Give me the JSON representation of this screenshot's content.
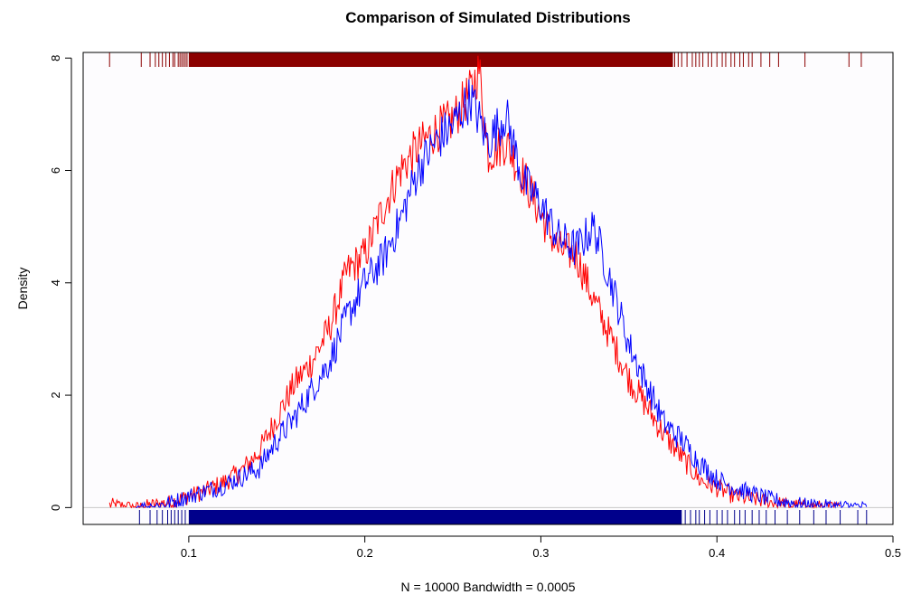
{
  "chart_data": {
    "type": "line",
    "title": "Comparison of Simulated Distributions",
    "xlabel": "N = 10000   Bandwidth = 0.0005",
    "ylabel": "Density",
    "xlim": [
      0.04,
      0.5
    ],
    "ylim": [
      -0.3,
      8.1
    ],
    "x_ticks": [
      0.1,
      0.2,
      0.3,
      0.4,
      0.5
    ],
    "x_tick_labels": [
      "0.1",
      "0.2",
      "0.3",
      "0.4",
      "0.5"
    ],
    "y_ticks": [
      0,
      2,
      4,
      6,
      8
    ],
    "y_tick_labels": [
      "0",
      "2",
      "4",
      "6",
      "8"
    ],
    "baseline": 0,
    "grid": false,
    "series": [
      {
        "name": "red",
        "color": "#ff0000",
        "x": [
          0.055,
          0.07,
          0.08,
          0.09,
          0.1,
          0.11,
          0.12,
          0.13,
          0.14,
          0.15,
          0.16,
          0.17,
          0.18,
          0.19,
          0.2,
          0.21,
          0.22,
          0.23,
          0.24,
          0.25,
          0.26,
          0.265,
          0.27,
          0.28,
          0.29,
          0.3,
          0.31,
          0.32,
          0.33,
          0.34,
          0.35,
          0.36,
          0.37,
          0.38,
          0.39,
          0.4,
          0.41,
          0.42,
          0.43,
          0.44,
          0.45,
          0.46,
          0.47
        ],
        "y": [
          0.05,
          0.0,
          0.05,
          0.1,
          0.2,
          0.3,
          0.45,
          0.65,
          1.0,
          1.6,
          2.2,
          2.6,
          3.2,
          4.2,
          4.5,
          5.3,
          6.0,
          6.4,
          6.7,
          6.9,
          7.4,
          7.8,
          6.3,
          6.5,
          5.9,
          5.2,
          4.6,
          4.5,
          3.7,
          3.0,
          2.3,
          1.8,
          1.3,
          0.9,
          0.5,
          0.35,
          0.2,
          0.15,
          0.1,
          0.05,
          0.02,
          0.02,
          0.0
        ]
      },
      {
        "name": "blue",
        "color": "#0000ff",
        "x": [
          0.07,
          0.08,
          0.09,
          0.1,
          0.11,
          0.12,
          0.13,
          0.14,
          0.15,
          0.16,
          0.17,
          0.18,
          0.19,
          0.2,
          0.21,
          0.22,
          0.23,
          0.24,
          0.25,
          0.26,
          0.27,
          0.28,
          0.29,
          0.3,
          0.31,
          0.32,
          0.33,
          0.34,
          0.35,
          0.36,
          0.37,
          0.38,
          0.39,
          0.4,
          0.41,
          0.42,
          0.43,
          0.44,
          0.45,
          0.46,
          0.47,
          0.48,
          0.485
        ],
        "y": [
          0.0,
          0.02,
          0.1,
          0.2,
          0.3,
          0.4,
          0.55,
          0.7,
          1.2,
          1.6,
          2.1,
          2.6,
          3.4,
          4.0,
          4.4,
          5.1,
          6.0,
          6.5,
          6.8,
          7.3,
          6.5,
          7.0,
          5.8,
          5.4,
          4.8,
          4.6,
          5.0,
          4.0,
          2.9,
          2.2,
          1.5,
          1.2,
          0.8,
          0.5,
          0.35,
          0.25,
          0.15,
          0.1,
          0.05,
          0.03,
          0.02,
          0.02,
          0.0
        ]
      }
    ],
    "rug": [
      {
        "name": "rug-top",
        "color": "#8b0000",
        "position": "top",
        "dense_range": [
          0.1,
          0.375
        ],
        "sparse_values": [
          0.055,
          0.073,
          0.078,
          0.081,
          0.083,
          0.085,
          0.087,
          0.089,
          0.091,
          0.092,
          0.094,
          0.095,
          0.096,
          0.097,
          0.098,
          0.099,
          0.376,
          0.378,
          0.38,
          0.383,
          0.386,
          0.388,
          0.39,
          0.392,
          0.395,
          0.397,
          0.4,
          0.403,
          0.405,
          0.408,
          0.41,
          0.413,
          0.415,
          0.418,
          0.42,
          0.425,
          0.43,
          0.435,
          0.45,
          0.475,
          0.482
        ]
      },
      {
        "name": "rug-bottom",
        "color": "#00008b",
        "position": "bottom",
        "dense_range": [
          0.1,
          0.38
        ],
        "sparse_values": [
          0.072,
          0.078,
          0.082,
          0.085,
          0.088,
          0.09,
          0.092,
          0.094,
          0.096,
          0.098,
          0.382,
          0.385,
          0.388,
          0.39,
          0.393,
          0.396,
          0.4,
          0.403,
          0.406,
          0.41,
          0.413,
          0.416,
          0.42,
          0.424,
          0.428,
          0.433,
          0.44,
          0.447,
          0.455,
          0.462,
          0.47,
          0.48,
          0.485
        ]
      }
    ]
  }
}
